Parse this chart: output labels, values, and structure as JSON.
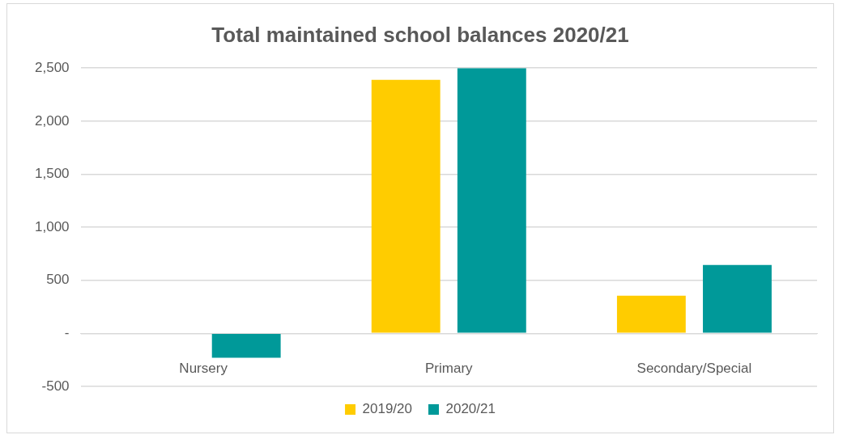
{
  "chart_data": {
    "type": "bar",
    "title": "Total maintained school balances 2020/21",
    "categories": [
      "Nursery",
      "Primary",
      "Secondary/Special"
    ],
    "series": [
      {
        "name": "2019/20",
        "color": "#ffcc00",
        "values": [
          0,
          2390,
          355
        ]
      },
      {
        "name": "2020/21",
        "color": "#009999",
        "values": [
          -230,
          2500,
          645
        ]
      }
    ],
    "ylim": [
      -500,
      2500
    ],
    "yticks": [
      -500,
      {
        "value": 0,
        "label": "-"
      },
      500,
      {
        "value": 1000,
        "label": "1,000"
      },
      {
        "value": 1500,
        "label": "1,500"
      },
      {
        "value": 2000,
        "label": "2,000"
      },
      {
        "value": 2500,
        "label": "2,500"
      }
    ],
    "grid": "y",
    "legend": "bottom"
  }
}
